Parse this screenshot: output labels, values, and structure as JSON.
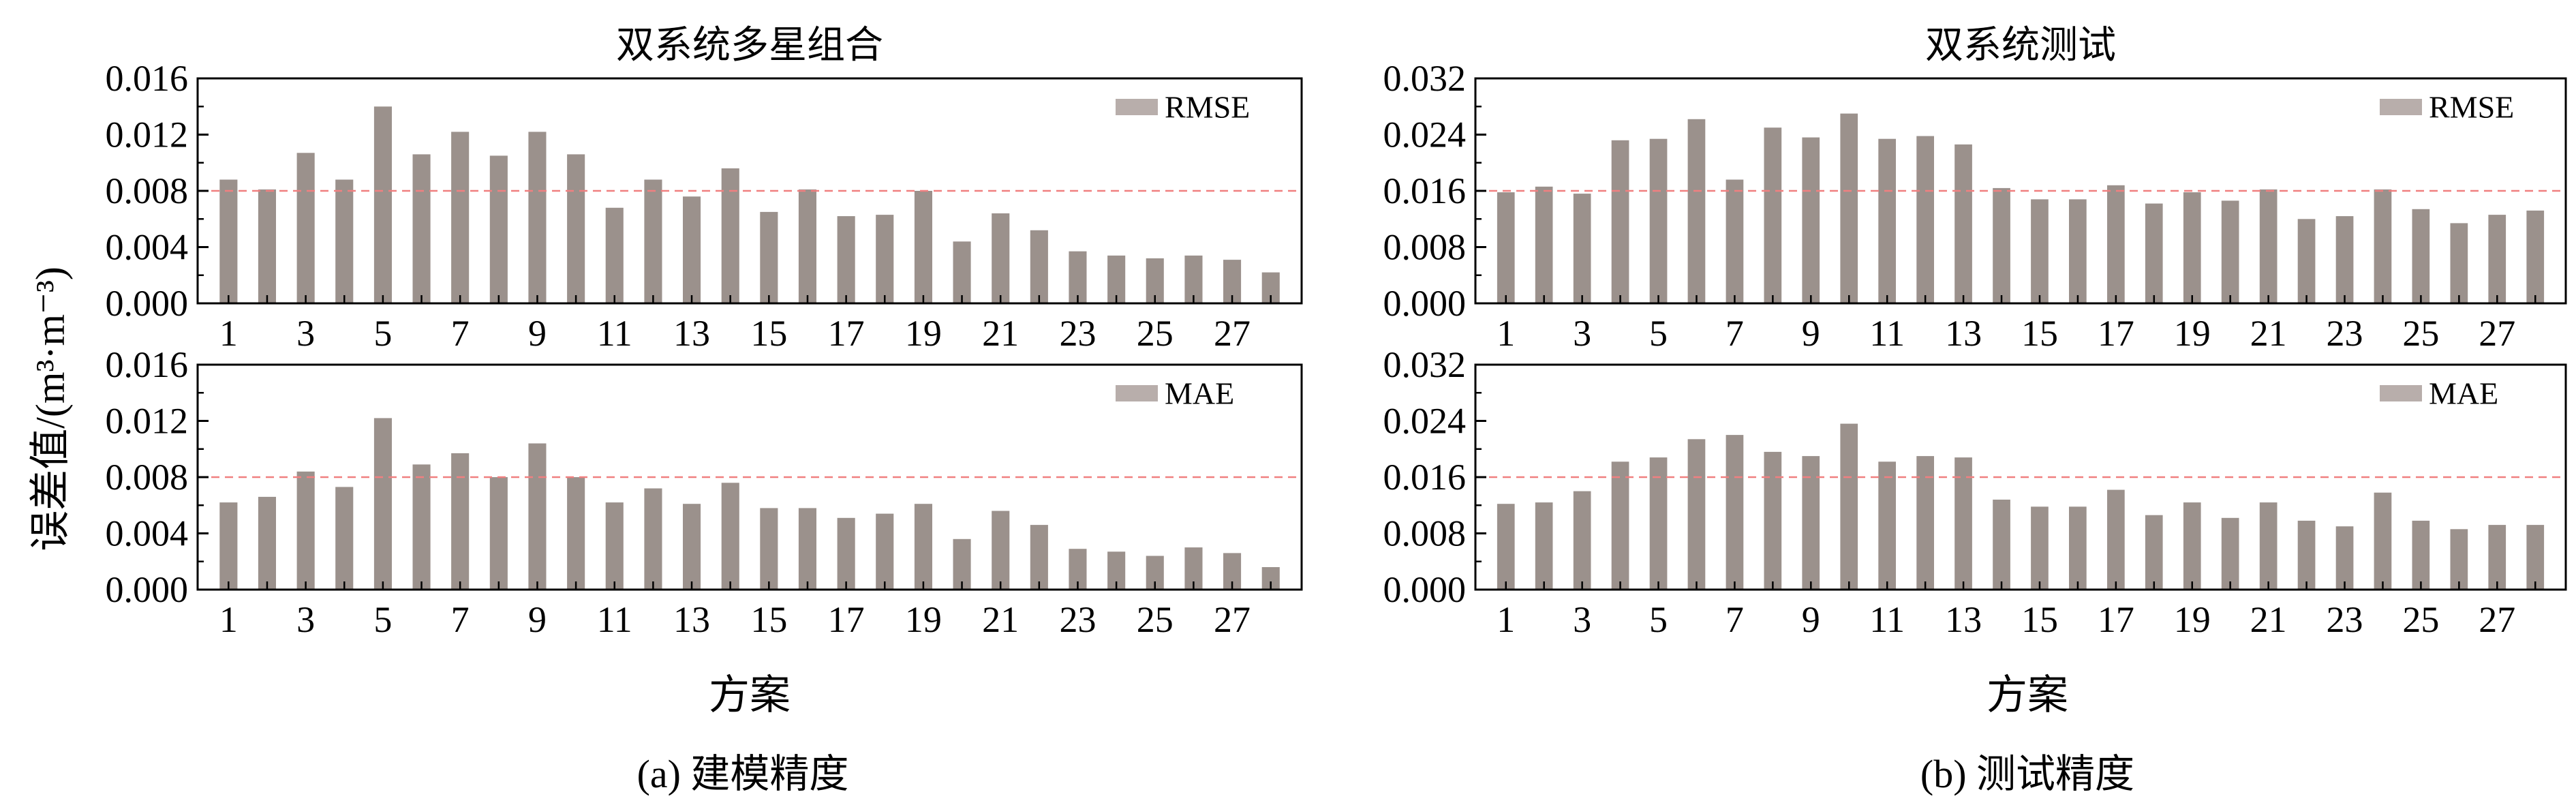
{
  "figure": {
    "ylabel": "误差值/(m³·m⁻³)",
    "xlabel_left": "方案",
    "xlabel_right": "方案",
    "caption_left": "(a) 建模精度",
    "caption_right": "(b) 测试精度"
  },
  "colors": {
    "bar": "#9b918c",
    "legend_bar": "#b8aeab",
    "reference_line": "#f08080",
    "axis": "#000000"
  },
  "chart_data": [
    {
      "type": "bar",
      "title": "双系统多星组合",
      "xlabel": "",
      "ylabel": "",
      "legend": "RMSE",
      "legend_position": "top-right",
      "categories": [
        1,
        2,
        3,
        4,
        5,
        6,
        7,
        8,
        9,
        10,
        11,
        12,
        13,
        14,
        15,
        16,
        17,
        18,
        19,
        20,
        21,
        22,
        23,
        24,
        25,
        26,
        27,
        28
      ],
      "tick_labels_x": [
        "1",
        "3",
        "5",
        "7",
        "9",
        "11",
        "13",
        "15",
        "17",
        "19",
        "21",
        "23",
        "25",
        "27"
      ],
      "tick_values_x": [
        1,
        3,
        5,
        7,
        9,
        11,
        13,
        15,
        17,
        19,
        21,
        23,
        25,
        27
      ],
      "values": [
        0.0088,
        0.0081,
        0.0107,
        0.0088,
        0.014,
        0.0106,
        0.0122,
        0.0105,
        0.0122,
        0.0106,
        0.0068,
        0.0088,
        0.0076,
        0.0096,
        0.0065,
        0.0081,
        0.0062,
        0.0063,
        0.008,
        0.0044,
        0.0064,
        0.0052,
        0.0037,
        0.0034,
        0.0032,
        0.0034,
        0.0031,
        0.0022
      ],
      "ylim": [
        0,
        0.016
      ],
      "yticks": [
        "0.000",
        "0.004",
        "0.008",
        "0.012",
        "0.016"
      ],
      "ytick_values": [
        0,
        0.004,
        0.008,
        0.012,
        0.016
      ],
      "reference_line": 0.008,
      "grid": false
    },
    {
      "type": "bar",
      "title": "",
      "xlabel": "",
      "ylabel": "",
      "legend": "MAE",
      "legend_position": "top-right",
      "categories": [
        1,
        2,
        3,
        4,
        5,
        6,
        7,
        8,
        9,
        10,
        11,
        12,
        13,
        14,
        15,
        16,
        17,
        18,
        19,
        20,
        21,
        22,
        23,
        24,
        25,
        26,
        27,
        28
      ],
      "tick_labels_x": [
        "1",
        "3",
        "5",
        "7",
        "9",
        "11",
        "13",
        "15",
        "17",
        "19",
        "21",
        "23",
        "25",
        "27"
      ],
      "tick_values_x": [
        1,
        3,
        5,
        7,
        9,
        11,
        13,
        15,
        17,
        19,
        21,
        23,
        25,
        27
      ],
      "values": [
        0.0062,
        0.0066,
        0.0084,
        0.0073,
        0.0122,
        0.0089,
        0.0097,
        0.008,
        0.0104,
        0.008,
        0.0062,
        0.0072,
        0.0061,
        0.0076,
        0.0058,
        0.0058,
        0.0051,
        0.0054,
        0.0061,
        0.0036,
        0.0056,
        0.0046,
        0.0029,
        0.0027,
        0.0024,
        0.003,
        0.0026,
        0.0016
      ],
      "ylim": [
        0,
        0.016
      ],
      "yticks": [
        "0.000",
        "0.004",
        "0.008",
        "0.012",
        "0.016"
      ],
      "ytick_values": [
        0,
        0.004,
        0.008,
        0.012,
        0.016
      ],
      "reference_line": 0.008,
      "grid": false
    },
    {
      "type": "bar",
      "title": "双系统测试",
      "xlabel": "",
      "ylabel": "",
      "legend": "RMSE",
      "legend_position": "top-right",
      "categories": [
        1,
        2,
        3,
        4,
        5,
        6,
        7,
        8,
        9,
        10,
        11,
        12,
        13,
        14,
        15,
        16,
        17,
        18,
        19,
        20,
        21,
        22,
        23,
        24,
        25,
        26,
        27,
        28
      ],
      "tick_labels_x": [
        "1",
        "3",
        "5",
        "7",
        "9",
        "11",
        "13",
        "15",
        "17",
        "19",
        "21",
        "23",
        "25",
        "27"
      ],
      "tick_values_x": [
        1,
        3,
        5,
        7,
        9,
        11,
        13,
        15,
        17,
        19,
        21,
        23,
        25,
        27
      ],
      "values": [
        0.0158,
        0.0166,
        0.0156,
        0.0232,
        0.0234,
        0.0262,
        0.0176,
        0.025,
        0.0236,
        0.027,
        0.0234,
        0.0238,
        0.0226,
        0.0164,
        0.0148,
        0.0148,
        0.0168,
        0.0142,
        0.0158,
        0.0146,
        0.0162,
        0.012,
        0.0124,
        0.0162,
        0.0134,
        0.0114,
        0.0126,
        0.0132
      ],
      "ylim": [
        0,
        0.032
      ],
      "yticks": [
        "0.000",
        "0.008",
        "0.016",
        "0.024",
        "0.032"
      ],
      "ytick_values": [
        0,
        0.008,
        0.016,
        0.024,
        0.032
      ],
      "reference_line": 0.016,
      "grid": false
    },
    {
      "type": "bar",
      "title": "",
      "xlabel": "",
      "ylabel": "",
      "legend": "MAE",
      "legend_position": "top-right",
      "categories": [
        1,
        2,
        3,
        4,
        5,
        6,
        7,
        8,
        9,
        10,
        11,
        12,
        13,
        14,
        15,
        16,
        17,
        18,
        19,
        20,
        21,
        22,
        23,
        24,
        25,
        26,
        27,
        28
      ],
      "tick_labels_x": [
        "1",
        "3",
        "5",
        "7",
        "9",
        "11",
        "13",
        "15",
        "17",
        "19",
        "21",
        "23",
        "25",
        "27"
      ],
      "tick_values_x": [
        1,
        3,
        5,
        7,
        9,
        11,
        13,
        15,
        17,
        19,
        21,
        23,
        25,
        27
      ],
      "values": [
        0.0122,
        0.0124,
        0.014,
        0.0182,
        0.0188,
        0.0214,
        0.022,
        0.0196,
        0.019,
        0.0236,
        0.0182,
        0.019,
        0.0188,
        0.0128,
        0.0118,
        0.0118,
        0.0142,
        0.0106,
        0.0124,
        0.0102,
        0.0124,
        0.0098,
        0.009,
        0.0138,
        0.0098,
        0.0086,
        0.0092,
        0.0092
      ],
      "ylim": [
        0,
        0.032
      ],
      "yticks": [
        "0.000",
        "0.008",
        "0.016",
        "0.024",
        "0.032"
      ],
      "ytick_values": [
        0,
        0.008,
        0.016,
        0.024,
        0.032
      ],
      "reference_line": 0.016,
      "grid": false
    }
  ]
}
